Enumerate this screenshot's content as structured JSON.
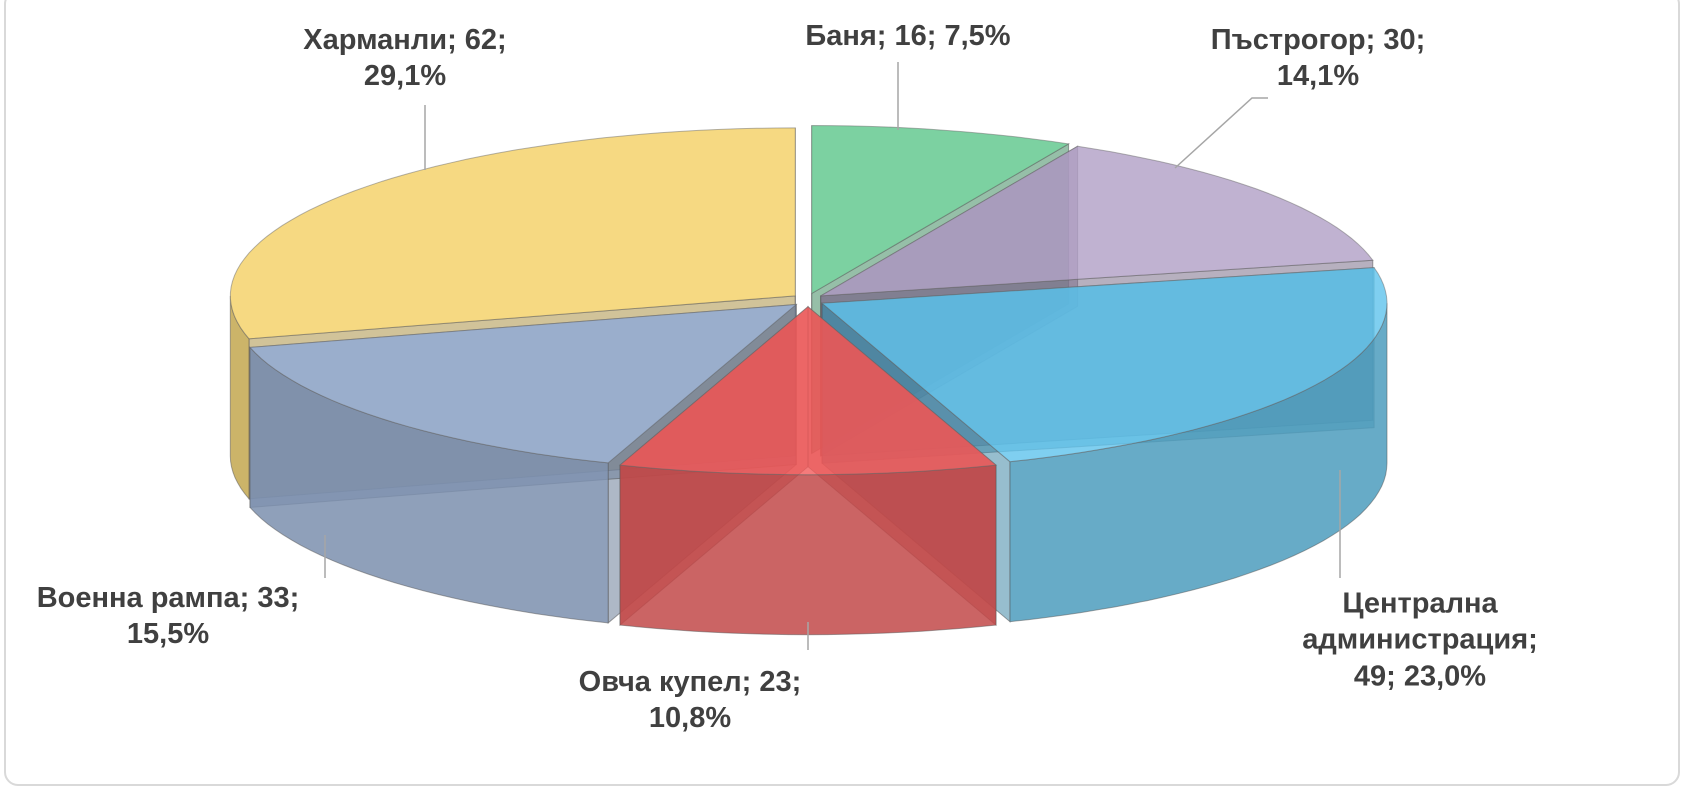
{
  "chart_data": {
    "type": "pie3d",
    "values": [
      16,
      30,
      49,
      23,
      33,
      62
    ],
    "value_labels": [
      "Баня; 16; 7,5%",
      "Пъстрогор; 30; 14,1%",
      "Централна администрация; 49; 23,0%",
      "Овча купел; 23; 10,8%",
      "Военна рампа; 33; 15,5%",
      "Харманли; 62; 29,1%"
    ],
    "colors": [
      "#5bc58a",
      "#b09fc6",
      "#5fc3ec",
      "#f25a5a",
      "#9ab3d9",
      "#f4d063"
    ]
  }
}
